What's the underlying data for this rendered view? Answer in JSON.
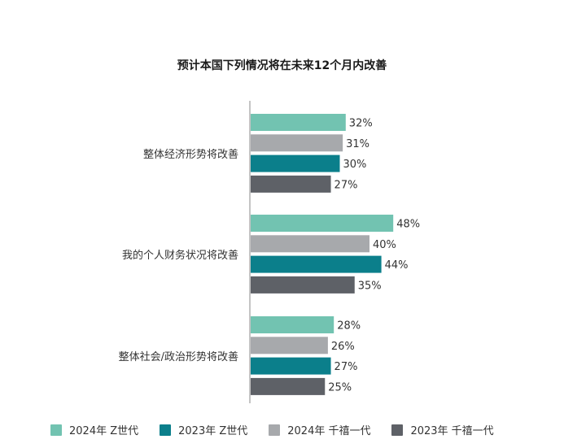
{
  "chart_data": {
    "type": "bar",
    "orientation": "horizontal",
    "title": "预计本国下列情况将在未来12个月内改善",
    "categories": [
      "整体经济形势将改善",
      "我的个人财务状况将改善",
      "整体社会/政治形势将改善"
    ],
    "series": [
      {
        "name": "2024年 Z世代",
        "values": [
          32,
          48,
          28
        ],
        "color": "#72c3b1"
      },
      {
        "name": "2024年 千禧一代",
        "values": [
          31,
          40,
          26
        ],
        "color": "#a7a9ac"
      },
      {
        "name": "2023年 Z世代",
        "values": [
          30,
          44,
          27
        ],
        "color": "#0b7f8b"
      },
      {
        "name": "2023年 千禧一代",
        "values": [
          27,
          35,
          25
        ],
        "color": "#5e6167"
      }
    ],
    "value_suffix": "%",
    "legend_position": "bottom",
    "legend_order": [
      "2024年 Z世代",
      "2023年 Z世代",
      "2024年 千禧一代",
      "2023年 千禧一代"
    ]
  }
}
